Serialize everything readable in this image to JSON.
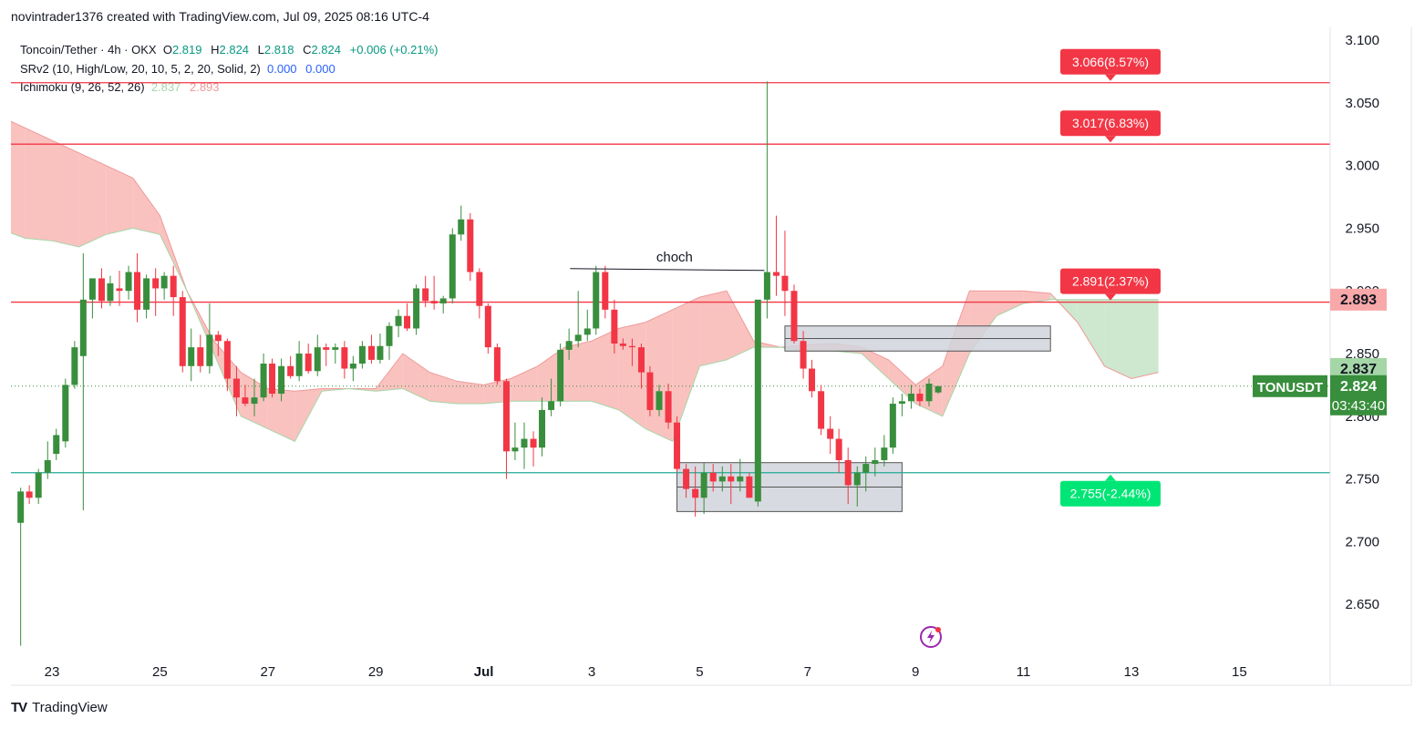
{
  "header": {
    "attribution": "novintrader1376 created with TradingView.com, Jul 09, 2025 08:16 UTC-4"
  },
  "legend": {
    "symbol_line": {
      "name": "Toncoin/Tether · 4h · OKX",
      "o_label": "O",
      "o_value": "2.819",
      "h_label": "H",
      "h_value": "2.824",
      "l_label": "L",
      "l_value": "2.818",
      "c_label": "C",
      "c_value": "2.824",
      "change": "+0.006 (+0.21%)"
    },
    "srv2": {
      "name": "SRv2 (10, High/Low, 20, 10, 5, 2, 20, Solid, 2)",
      "v1": "0.000",
      "v2": "0.000"
    },
    "ichimoku": {
      "name": "Ichimoku (9, 26, 52, 26)",
      "v1": "2.837",
      "v2": "2.893"
    }
  },
  "footer": {
    "brand": "TradingView"
  },
  "colors": {
    "up": "#388e3c",
    "down": "#f23645",
    "level_red": "#f23645",
    "level_green": "#22ab94",
    "cloud_red": "#f8bbb8",
    "cloud_green": "#c8e6c9",
    "zone": "#d1d4dc"
  },
  "chart_data": {
    "type": "candlestick",
    "symbol": "TONUSDT",
    "timeframe": "4h",
    "ylim": [
      2.615,
      3.105
    ],
    "y_ticks": [
      "3.100",
      "3.050",
      "3.000",
      "2.950",
      "2.900",
      "2.850",
      "2.800",
      "2.750",
      "2.700",
      "2.650"
    ],
    "x_ticks": [
      "23",
      "25",
      "27",
      "29",
      "Jul",
      "3",
      "5",
      "7",
      "9",
      "11",
      "13",
      "15"
    ],
    "x_tick_days": [
      23,
      25,
      27,
      29,
      31,
      33,
      35,
      37,
      39,
      41,
      43,
      45
    ],
    "candles": [
      [
        22.08,
        2.82,
        2.83,
        2.672,
        2.715
      ],
      [
        22.42,
        2.715,
        2.743,
        2.617,
        2.74
      ],
      [
        22.58,
        2.74,
        2.745,
        2.73,
        2.735
      ],
      [
        22.75,
        2.735,
        2.758,
        2.73,
        2.755
      ],
      [
        22.92,
        2.755,
        2.78,
        2.75,
        2.765
      ],
      [
        23.08,
        2.77,
        2.79,
        2.765,
        2.785
      ],
      [
        23.25,
        2.78,
        2.83,
        2.775,
        2.825
      ],
      [
        23.42,
        2.825,
        2.86,
        2.822,
        2.855
      ],
      [
        23.58,
        2.848,
        2.93,
        2.725,
        2.893
      ],
      [
        23.75,
        2.893,
        2.91,
        2.878,
        2.91
      ],
      [
        23.92,
        2.91,
        2.918,
        2.886,
        2.892
      ],
      [
        24.08,
        2.892,
        2.912,
        2.888,
        2.906
      ],
      [
        24.25,
        2.902,
        2.916,
        2.888,
        2.9
      ],
      [
        24.42,
        2.9,
        2.92,
        2.893,
        2.915
      ],
      [
        24.58,
        2.915,
        2.93,
        2.875,
        2.885
      ],
      [
        24.75,
        2.885,
        2.913,
        2.878,
        2.91
      ],
      [
        24.92,
        2.91,
        2.918,
        2.88,
        2.902
      ],
      [
        25.08,
        2.902,
        2.915,
        2.893,
        2.912
      ],
      [
        25.25,
        2.912,
        2.92,
        2.88,
        2.895
      ],
      [
        25.42,
        2.895,
        2.9,
        2.835,
        2.84
      ],
      [
        25.58,
        2.84,
        2.87,
        2.828,
        2.855
      ],
      [
        25.75,
        2.855,
        2.865,
        2.835,
        2.84
      ],
      [
        25.92,
        2.84,
        2.89,
        2.834,
        2.865
      ],
      [
        26.08,
        2.865,
        2.868,
        2.848,
        2.86
      ],
      [
        26.25,
        2.86,
        2.862,
        2.82,
        2.83
      ],
      [
        26.42,
        2.83,
        2.84,
        2.8,
        2.815
      ],
      [
        26.58,
        2.815,
        2.825,
        2.808,
        2.81
      ],
      [
        26.75,
        2.81,
        2.83,
        2.8,
        2.815
      ],
      [
        26.92,
        2.815,
        2.85,
        2.812,
        2.842
      ],
      [
        27.08,
        2.842,
        2.846,
        2.815,
        2.818
      ],
      [
        27.25,
        2.818,
        2.846,
        2.812,
        2.84
      ],
      [
        27.42,
        2.84,
        2.848,
        2.83,
        2.832
      ],
      [
        27.58,
        2.832,
        2.86,
        2.828,
        2.85
      ],
      [
        27.75,
        2.85,
        2.858,
        2.834,
        2.836
      ],
      [
        27.92,
        2.836,
        2.865,
        2.832,
        2.855
      ],
      [
        28.08,
        2.855,
        2.858,
        2.84,
        2.853
      ],
      [
        28.25,
        2.853,
        2.858,
        2.842,
        2.855
      ],
      [
        28.42,
        2.855,
        2.86,
        2.83,
        2.838
      ],
      [
        28.58,
        2.838,
        2.848,
        2.828,
        2.842
      ],
      [
        28.75,
        2.842,
        2.86,
        2.838,
        2.856
      ],
      [
        28.92,
        2.856,
        2.865,
        2.842,
        2.845
      ],
      [
        29.08,
        2.845,
        2.866,
        2.842,
        2.856
      ],
      [
        29.25,
        2.856,
        2.875,
        2.845,
        2.872
      ],
      [
        29.42,
        2.872,
        2.885,
        2.863,
        2.88
      ],
      [
        29.58,
        2.88,
        2.89,
        2.868,
        2.87
      ],
      [
        29.75,
        2.87,
        2.905,
        2.865,
        2.902
      ],
      [
        29.92,
        2.902,
        2.912,
        2.887,
        2.892
      ],
      [
        30.08,
        2.892,
        2.912,
        2.885,
        2.89
      ],
      [
        30.25,
        2.89,
        2.896,
        2.882,
        2.894
      ],
      [
        30.42,
        2.894,
        2.95,
        2.89,
        2.945
      ],
      [
        30.58,
        2.945,
        2.968,
        2.94,
        2.957
      ],
      [
        30.75,
        2.957,
        2.962,
        2.908,
        2.915
      ],
      [
        30.92,
        2.915,
        2.918,
        2.878,
        2.888
      ],
      [
        31.08,
        2.888,
        2.89,
        2.85,
        2.855
      ],
      [
        31.25,
        2.855,
        2.858,
        2.825,
        2.828
      ],
      [
        31.42,
        2.828,
        2.83,
        2.75,
        2.772
      ],
      [
        31.58,
        2.772,
        2.795,
        2.765,
        2.775
      ],
      [
        31.75,
        2.775,
        2.795,
        2.758,
        2.782
      ],
      [
        31.92,
        2.782,
        2.788,
        2.76,
        2.775
      ],
      [
        32.08,
        2.775,
        2.815,
        2.768,
        2.805
      ],
      [
        32.25,
        2.805,
        2.83,
        2.8,
        2.812
      ],
      [
        32.42,
        2.812,
        2.858,
        2.808,
        2.853
      ],
      [
        32.58,
        2.853,
        2.87,
        2.845,
        2.86
      ],
      [
        32.75,
        2.86,
        2.9,
        2.855,
        2.865
      ],
      [
        32.92,
        2.865,
        2.885,
        2.86,
        2.87
      ],
      [
        33.08,
        2.87,
        2.92,
        2.865,
        2.915
      ],
      [
        33.25,
        2.915,
        2.92,
        2.878,
        2.885
      ],
      [
        33.42,
        2.885,
        2.893,
        2.85,
        2.858
      ],
      [
        33.58,
        2.858,
        2.862,
        2.853,
        2.856
      ],
      [
        33.75,
        2.856,
        2.862,
        2.84,
        2.855
      ],
      [
        33.92,
        2.855,
        2.858,
        2.822,
        2.835
      ],
      [
        34.08,
        2.835,
        2.84,
        2.8,
        2.805
      ],
      [
        34.25,
        2.805,
        2.825,
        2.8,
        2.82
      ],
      [
        34.42,
        2.82,
        2.826,
        2.79,
        2.795
      ],
      [
        34.58,
        2.795,
        2.8,
        2.755,
        2.758
      ],
      [
        34.75,
        2.758,
        2.762,
        2.735,
        2.742
      ],
      [
        34.92,
        2.742,
        2.76,
        2.72,
        2.735
      ],
      [
        35.08,
        2.735,
        2.763,
        2.722,
        2.755
      ],
      [
        35.25,
        2.755,
        2.762,
        2.74,
        2.748
      ],
      [
        35.42,
        2.748,
        2.76,
        2.74,
        2.752
      ],
      [
        35.58,
        2.752,
        2.762,
        2.73,
        2.748
      ],
      [
        35.75,
        2.748,
        2.766,
        2.74,
        2.752
      ],
      [
        35.92,
        2.752,
        2.755,
        2.735,
        2.735
      ],
      [
        36.08,
        2.732,
        2.892,
        2.728,
        2.893
      ],
      [
        36.25,
        2.893,
        3.067,
        2.878,
        2.915
      ],
      [
        36.42,
        2.915,
        2.96,
        2.896,
        2.912
      ],
      [
        36.58,
        2.912,
        2.948,
        2.88,
        2.9
      ],
      [
        36.75,
        2.9,
        2.905,
        2.858,
        2.86
      ],
      [
        36.92,
        2.86,
        2.868,
        2.83,
        2.838
      ],
      [
        37.08,
        2.838,
        2.845,
        2.815,
        2.82
      ],
      [
        37.25,
        2.82,
        2.825,
        2.785,
        2.79
      ],
      [
        37.42,
        2.79,
        2.8,
        2.77,
        2.782
      ],
      [
        37.58,
        2.782,
        2.79,
        2.755,
        2.765
      ],
      [
        37.75,
        2.765,
        2.775,
        2.73,
        2.745
      ],
      [
        37.92,
        2.745,
        2.76,
        2.728,
        2.755
      ],
      [
        38.08,
        2.755,
        2.768,
        2.74,
        2.762
      ],
      [
        38.25,
        2.762,
        2.775,
        2.752,
        2.765
      ],
      [
        38.42,
        2.765,
        2.785,
        2.76,
        2.775
      ],
      [
        38.58,
        2.775,
        2.815,
        2.77,
        2.81
      ],
      [
        38.75,
        2.81,
        2.818,
        2.8,
        2.812
      ],
      [
        38.92,
        2.812,
        2.825,
        2.806,
        2.818
      ],
      [
        39.08,
        2.818,
        2.822,
        2.808,
        2.812
      ],
      [
        39.25,
        2.812,
        2.83,
        2.808,
        2.826
      ],
      [
        39.42,
        2.819,
        2.824,
        2.818,
        2.824
      ]
    ],
    "ichimoku_cloud": {
      "x": [
        22.0,
        22.5,
        23.0,
        23.5,
        24.0,
        24.5,
        25.0,
        25.5,
        26.0,
        26.5,
        27.0,
        27.5,
        28.0,
        28.5,
        29.0,
        29.5,
        30.0,
        30.5,
        31.0,
        31.5,
        32.0,
        32.5,
        33.0,
        33.5,
        34.0,
        34.5,
        35.0,
        35.5,
        36.0,
        36.5,
        37.0,
        37.5,
        38.0,
        38.5,
        39.0,
        39.5,
        40.0,
        40.5,
        41.0,
        41.5,
        42.0,
        42.5,
        43.0,
        43.5
      ],
      "span_a": [
        3.04,
        3.03,
        3.02,
        3.01,
        3.0,
        2.99,
        2.96,
        2.9,
        2.86,
        2.835,
        2.822,
        2.82,
        2.822,
        2.822,
        2.822,
        2.85,
        2.835,
        2.828,
        2.825,
        2.83,
        2.84,
        2.855,
        2.86,
        2.87,
        2.875,
        2.885,
        2.895,
        2.9,
        2.86,
        2.855,
        2.857,
        2.858,
        2.855,
        2.845,
        2.825,
        2.84,
        2.9,
        2.9,
        2.9,
        2.898,
        2.875,
        2.84,
        2.83,
        2.835
      ],
      "span_b": [
        2.95,
        2.942,
        2.94,
        2.935,
        2.945,
        2.95,
        2.945,
        2.9,
        2.85,
        2.8,
        2.79,
        2.78,
        2.82,
        2.822,
        2.82,
        2.822,
        2.812,
        2.81,
        2.81,
        2.812,
        2.812,
        2.812,
        2.812,
        2.805,
        2.79,
        2.78,
        2.84,
        2.845,
        2.855,
        2.855,
        2.852,
        2.852,
        2.85,
        2.83,
        2.81,
        2.8,
        2.85,
        2.88,
        2.89,
        2.893,
        2.893,
        2.893,
        2.893,
        2.893
      ]
    },
    "levels": [
      {
        "value": 3.066,
        "label": "3.066(8.57%)",
        "color": "red"
      },
      {
        "value": 3.017,
        "label": "3.017(6.83%)",
        "color": "red"
      },
      {
        "value": 2.891,
        "label": "2.891(2.37%)",
        "color": "red"
      },
      {
        "value": 2.755,
        "label": "2.755(-2.44%)",
        "color": "green"
      }
    ],
    "zones": [
      {
        "x0": 34.58,
        "x1": 38.75,
        "y0": 2.724,
        "y1": 2.763
      },
      {
        "x0": 36.58,
        "x1": 41.5,
        "y0": 2.852,
        "y1": 2.872
      }
    ],
    "annotation": {
      "text": "choch",
      "x0": 32.6,
      "x1": 36.2,
      "y": 2.917
    },
    "price_labels": [
      {
        "text": "2.893",
        "value": 2.893,
        "kind": "red"
      },
      {
        "text": "2.837",
        "value": 2.837,
        "kind": "green"
      },
      {
        "text": "2.824",
        "value": 2.824,
        "kind": "dark"
      }
    ],
    "symbol_tag": "TONUSDT",
    "countdown": "03:43:40",
    "current_price": 2.824
  }
}
